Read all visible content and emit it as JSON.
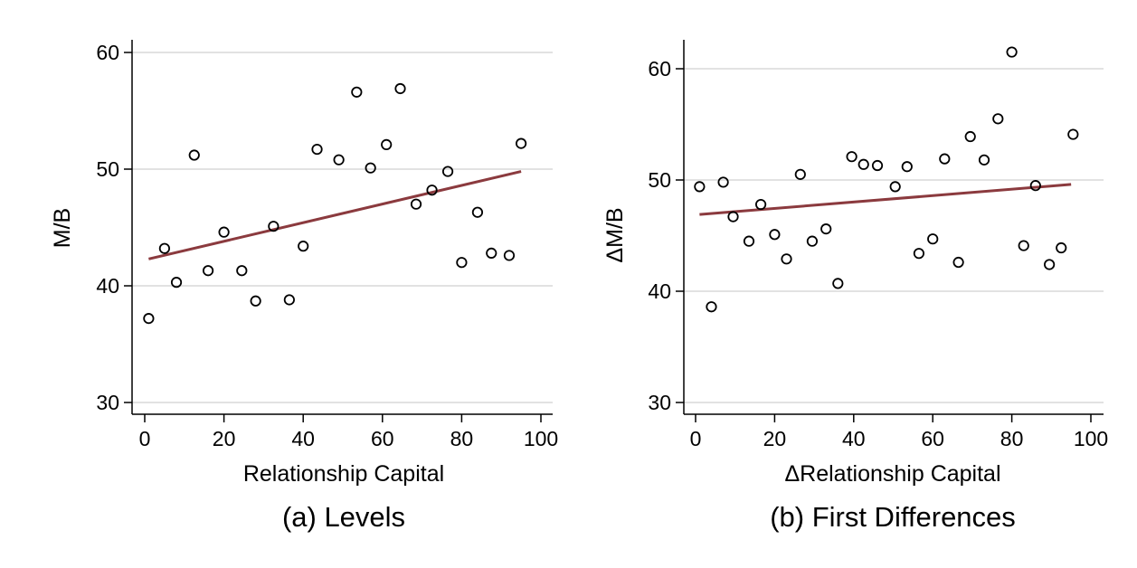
{
  "chart_data": [
    {
      "type": "scatter",
      "caption": "(a) Levels",
      "xlabel": "Relationship Capital",
      "ylabel": "M/B",
      "xlim": [
        0,
        100
      ],
      "ylim": [
        30,
        60
      ],
      "xticks": [
        0,
        20,
        40,
        60,
        80,
        100
      ],
      "yticks": [
        30,
        40,
        50,
        60
      ],
      "grid": "horizontal",
      "fit_line": {
        "color": "#8b3a3e",
        "x": [
          1,
          95
        ],
        "y": [
          42.3,
          49.8
        ]
      },
      "points": [
        [
          1,
          37.2
        ],
        [
          5,
          43.2
        ],
        [
          8,
          40.3
        ],
        [
          12.5,
          51.2
        ],
        [
          16,
          41.3
        ],
        [
          20,
          44.6
        ],
        [
          24.5,
          41.3
        ],
        [
          28,
          38.7
        ],
        [
          32.5,
          45.1
        ],
        [
          36.5,
          38.8
        ],
        [
          40,
          43.4
        ],
        [
          43.5,
          51.7
        ],
        [
          49,
          50.8
        ],
        [
          53.5,
          56.6
        ],
        [
          57,
          50.1
        ],
        [
          61,
          52.1
        ],
        [
          64.5,
          56.9
        ],
        [
          68.5,
          47.0
        ],
        [
          72.5,
          48.2
        ],
        [
          76.5,
          49.8
        ],
        [
          80,
          42.0
        ],
        [
          84,
          46.3
        ],
        [
          87.5,
          42.8
        ],
        [
          92,
          42.6
        ],
        [
          95,
          52.2
        ]
      ]
    },
    {
      "type": "scatter",
      "caption": "(b) First Differences",
      "xlabel": "ΔRelationship Capital",
      "ylabel": "ΔM/B",
      "xlim": [
        0,
        100
      ],
      "ylim": [
        30,
        60
      ],
      "xticks": [
        0,
        20,
        40,
        60,
        80,
        100
      ],
      "yticks": [
        30,
        40,
        50,
        60
      ],
      "grid": "horizontal",
      "fit_line": {
        "color": "#8b3a3e",
        "x": [
          1,
          95
        ],
        "y": [
          46.9,
          49.6
        ]
      },
      "points": [
        [
          1,
          49.4
        ],
        [
          4,
          38.6
        ],
        [
          7,
          49.8
        ],
        [
          9.5,
          46.7
        ],
        [
          13.5,
          44.5
        ],
        [
          16.5,
          47.8
        ],
        [
          20,
          45.1
        ],
        [
          23,
          42.9
        ],
        [
          26.5,
          50.5
        ],
        [
          29.5,
          44.5
        ],
        [
          33,
          45.6
        ],
        [
          36,
          40.7
        ],
        [
          39.5,
          52.1
        ],
        [
          42.5,
          51.4
        ],
        [
          46,
          51.3
        ],
        [
          50.5,
          49.4
        ],
        [
          53.5,
          51.2
        ],
        [
          56.5,
          43.4
        ],
        [
          60,
          44.7
        ],
        [
          63,
          51.9
        ],
        [
          66.5,
          42.6
        ],
        [
          69.5,
          53.9
        ],
        [
          73,
          51.8
        ],
        [
          76.5,
          55.5
        ],
        [
          80,
          61.5
        ],
        [
          83,
          44.1
        ],
        [
          86,
          49.5
        ],
        [
          89.5,
          42.4
        ],
        [
          92.5,
          43.9
        ],
        [
          95.5,
          54.1
        ]
      ]
    }
  ]
}
